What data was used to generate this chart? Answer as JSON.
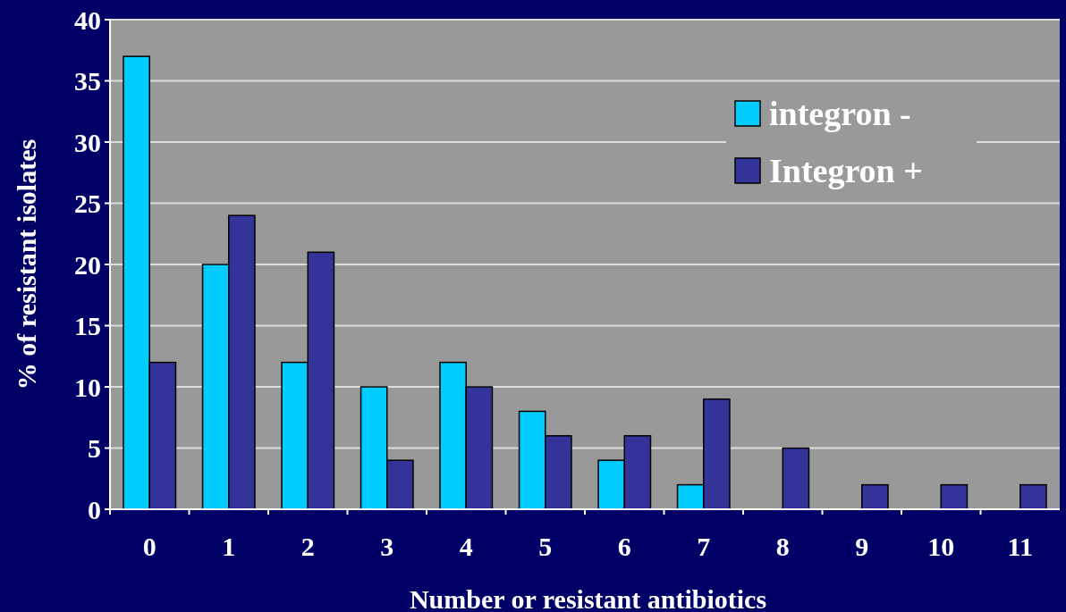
{
  "chart_data": {
    "type": "bar",
    "xlabel": "Number or resistant antibiotics",
    "ylabel": "% of resistant isolates",
    "categories": [
      "0",
      "1",
      "2",
      "3",
      "4",
      "5",
      "6",
      "7",
      "8",
      "9",
      "10",
      "11"
    ],
    "series": [
      {
        "name": "integron -",
        "color": "#00ccff",
        "values": [
          37,
          20,
          12,
          10,
          12,
          8,
          4,
          2,
          null,
          null,
          null,
          null
        ]
      },
      {
        "name": "Integron +",
        "color": "#333399",
        "values": [
          12,
          24,
          21,
          4,
          10,
          6,
          6,
          9,
          5,
          2,
          2,
          2
        ]
      }
    ],
    "ylim": [
      0,
      40
    ],
    "yticks": [
      0,
      5,
      10,
      15,
      20,
      25,
      30,
      35,
      40
    ],
    "grid": "y",
    "legend": "top right"
  }
}
